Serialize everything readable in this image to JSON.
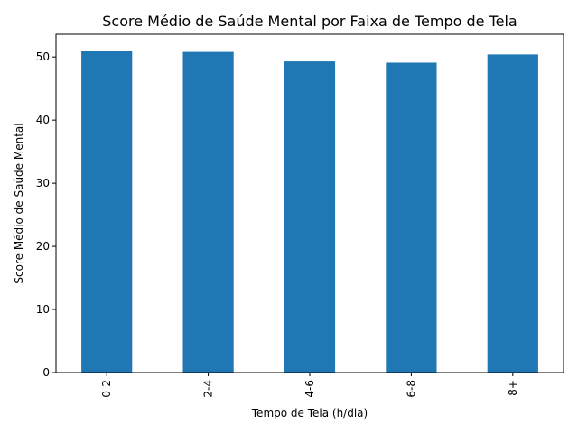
{
  "chart_data": {
    "type": "bar",
    "title": "Score Médio de Saúde Mental por Faixa de Tempo de Tela",
    "xlabel": "Tempo de Tela (h/dia)",
    "ylabel": "Score Médio de Saúde Mental",
    "categories": [
      "0-2",
      "2-4",
      "4-6",
      "6-8",
      "8+"
    ],
    "values": [
      51.0,
      50.8,
      49.3,
      49.1,
      50.4
    ],
    "ylim": [
      0,
      53.6
    ],
    "yticks": [
      0,
      10,
      20,
      30,
      40,
      50
    ],
    "bar_color": "#1f77b4",
    "grid": false,
    "legend": "none"
  }
}
